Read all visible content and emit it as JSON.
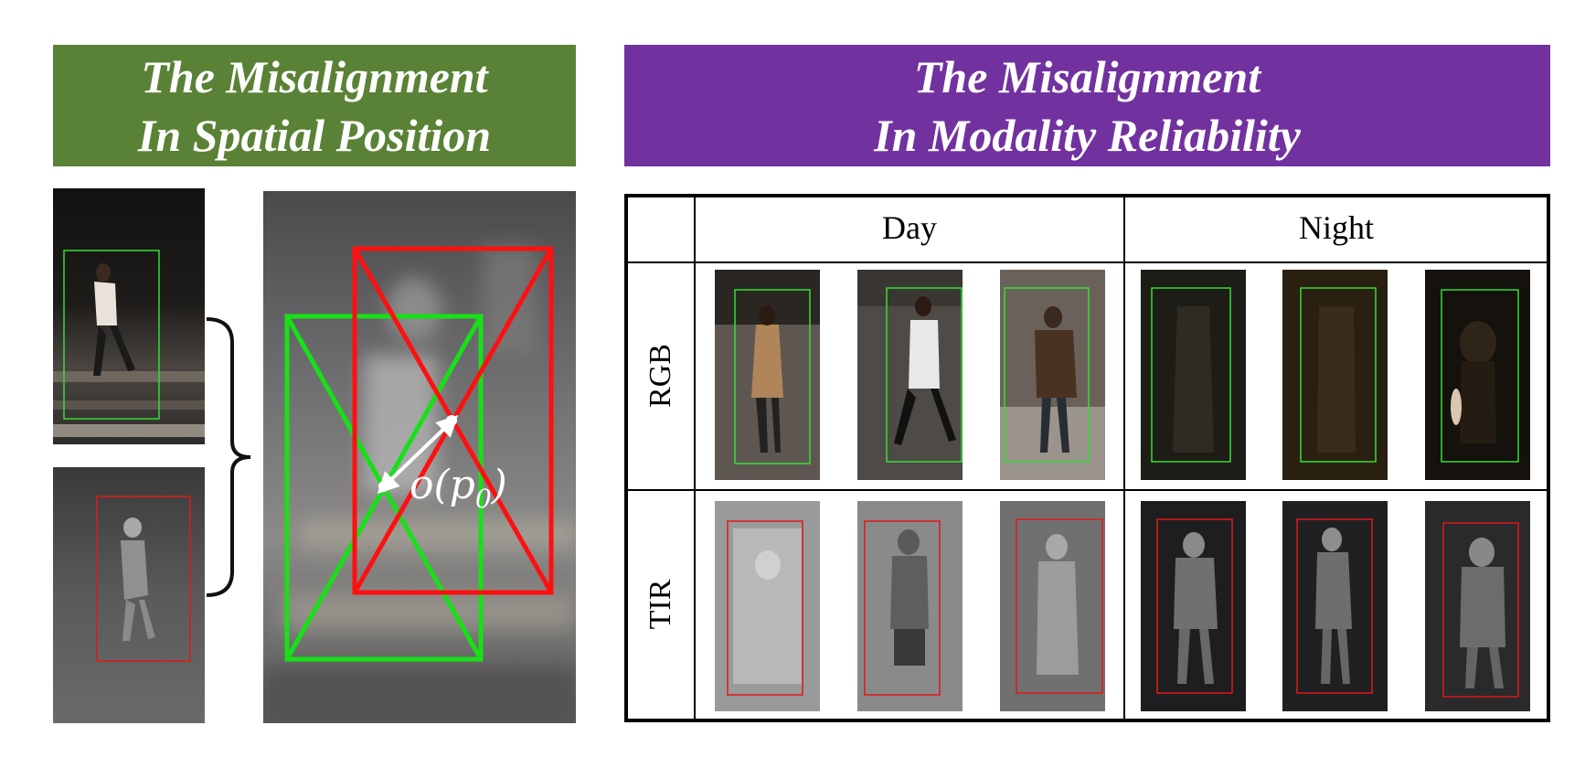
{
  "left_panel": {
    "title_line1": "The Misalignment",
    "title_line2": "In Spatial Position",
    "title_bg": "#5a8236",
    "offset_label": "o(p",
    "offset_sub": "0",
    "offset_close": ")",
    "rgb_box_color": "#18e018",
    "tir_box_color": "#ff1010"
  },
  "right_panel": {
    "title_line1": "The Misalignment",
    "title_line2": "In Modality Reliability",
    "title_bg": "#7132a0",
    "columns": [
      "Day",
      "Night"
    ],
    "rows": [
      "RGB",
      "TIR"
    ]
  }
}
